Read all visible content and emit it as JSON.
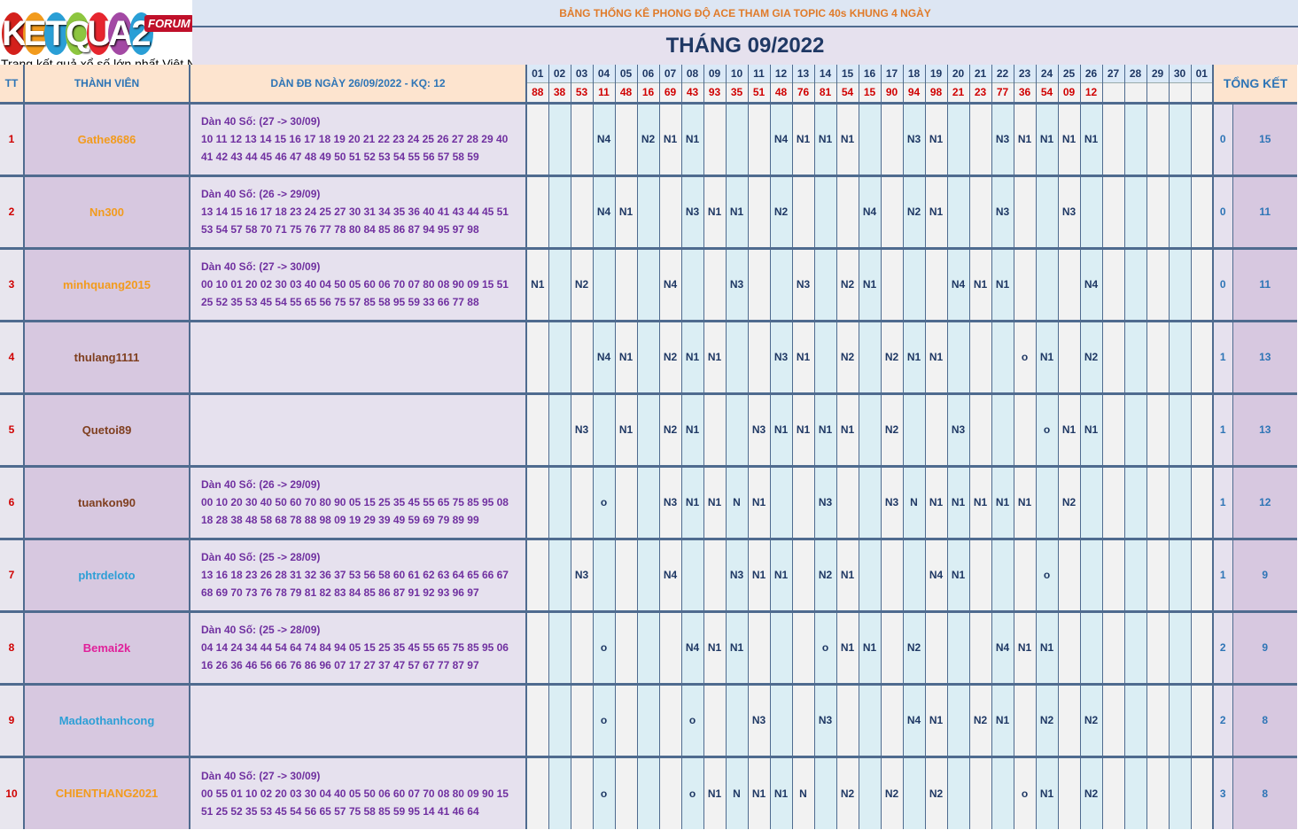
{
  "logo": {
    "brand": "KETQUA2",
    "brand_letters": [
      "K",
      "E",
      "T",
      "Q",
      "U",
      "A",
      "2"
    ],
    "brand_colors": [
      "#d4211c",
      "#f29b1d",
      "#2a9fd6",
      "#8dc63f",
      "#e6262f",
      "#a349a4",
      "#2a9fd6"
    ],
    "badge": "FORUM",
    "tagline": "Trang kết quả xổ số lớn nhất Việt Nam"
  },
  "title": "BẢNG THỐNG KÊ PHONG ĐỘ ACE THAM GIA TOPIC 40s KHUNG 4 NGÀY",
  "month": "THÁNG 09/2022",
  "headers": {
    "tt": "TT",
    "member": "THÀNH VIÊN",
    "dan": "DÀN ĐB NGÀY 26/09/2022 - KQ: 12",
    "total": "TỔNG KẾT"
  },
  "days": [
    "01",
    "02",
    "03",
    "04",
    "05",
    "06",
    "07",
    "08",
    "09",
    "10",
    "11",
    "12",
    "13",
    "14",
    "15",
    "16",
    "17",
    "18",
    "19",
    "20",
    "21",
    "22",
    "23",
    "24",
    "25",
    "26",
    "27",
    "28",
    "29",
    "30",
    "01"
  ],
  "results": [
    "88",
    "38",
    "53",
    "11",
    "48",
    "16",
    "69",
    "43",
    "93",
    "35",
    "51",
    "48",
    "76",
    "81",
    "54",
    "15",
    "90",
    "94",
    "98",
    "21",
    "23",
    "77",
    "36",
    "54",
    "09",
    "12",
    "",
    "",
    "",
    "",
    ""
  ],
  "rows": [
    {
      "tt": "1",
      "name": "Gathe8686",
      "color": "#f29b1d",
      "dan_title": "Dàn 40 Số: (27 -> 30/09)",
      "dan_line1": "10 11 12 13 14 15 16 17 18 19 20 21 22 23 24 25 26 27 28 29 40",
      "dan_line2": "41 42 43 44 45 46 47 48 49 50 51 52 53 54 55 56 57 58 59",
      "cells": [
        "",
        "",
        "",
        "N4",
        "",
        "N2",
        "N1",
        "N1",
        "",
        "",
        "",
        "N4",
        "N1",
        "N1",
        "N1",
        "",
        "",
        "N3",
        "N1",
        "",
        "",
        "N3",
        "N1",
        "N1",
        "N1",
        "N1",
        "",
        "",
        "",
        "",
        ""
      ],
      "t1": "0",
      "t2": "15"
    },
    {
      "tt": "2",
      "name": "Nn300",
      "color": "#f29b1d",
      "dan_title": "Dàn 40 Số: (26 -> 29/09)",
      "dan_line1": "13 14 15 16 17 18 23 24 25 27 30 31 34 35 36 40 41 43 44 45 51",
      "dan_line2": "53 54 57 58 70 71 75 76 77 78 80 84 85 86 87 94 95 97 98",
      "cells": [
        "",
        "",
        "",
        "N4",
        "N1",
        "",
        "",
        "N3",
        "N1",
        "N1",
        "",
        "N2",
        "",
        "",
        "",
        "N4",
        "",
        "N2",
        "N1",
        "",
        "",
        "N3",
        "",
        "",
        "N3",
        "",
        "",
        "",
        "",
        "",
        ""
      ],
      "t1": "0",
      "t2": "11"
    },
    {
      "tt": "3",
      "name": "minhquang2015",
      "color": "#f29b1d",
      "dan_title": "Dàn 40 Số: (27 -> 30/09)",
      "dan_line1": "00 10 01 20 02 30 03 40 04 50 05 60 06 70 07 80 08 90 09 15 51",
      "dan_line2": "25 52 35 53 45 54 55 65 56 75 57 85 58 95 59 33 66 77 88",
      "cells": [
        "N1",
        "",
        "N2",
        "",
        "",
        "",
        "N4",
        "",
        "",
        "N3",
        "",
        "",
        "N3",
        "",
        "N2",
        "N1",
        "",
        "",
        "",
        "N4",
        "N1",
        "N1",
        "",
        "",
        "",
        "N4",
        "",
        "",
        "",
        "",
        ""
      ],
      "t1": "0",
      "t2": "11"
    },
    {
      "tt": "4",
      "name": "thulang1111",
      "color": "#7f3f1f",
      "dan_title": "",
      "dan_line1": "",
      "dan_line2": "",
      "cells": [
        "",
        "",
        "",
        "N4",
        "N1",
        "",
        "N2",
        "N1",
        "N1",
        "",
        "",
        "N3",
        "N1",
        "",
        "N2",
        "",
        "N2",
        "N1",
        "N1",
        "",
        "",
        "",
        "o",
        "N1",
        "",
        "N2",
        "",
        "",
        "",
        "",
        ""
      ],
      "t1": "1",
      "t2": "13"
    },
    {
      "tt": "5",
      "name": "Quetoi89",
      "color": "#7f3f1f",
      "dan_title": "",
      "dan_line1": "",
      "dan_line2": "",
      "cells": [
        "",
        "",
        "N3",
        "",
        "N1",
        "",
        "N2",
        "N1",
        "",
        "",
        "N3",
        "N1",
        "N1",
        "N1",
        "N1",
        "",
        "N2",
        "",
        "",
        "N3",
        "",
        "",
        "",
        "o",
        "N1",
        "N1",
        "",
        "",
        "",
        "",
        ""
      ],
      "t1": "1",
      "t2": "13"
    },
    {
      "tt": "6",
      "name": "tuankon90",
      "color": "#7f3f1f",
      "dan_title": "Dàn 40 Số: (26 -> 29/09)",
      "dan_line1": "00 10 20 30 40 50 60 70 80 90 05 15 25 35 45 55 65 75 85 95 08",
      "dan_line2": "18 28 38 48 58 68 78 88 98 09 19 29 39 49 59 69 79 89 99",
      "cells": [
        "",
        "",
        "",
        "o",
        "",
        "",
        "N3",
        "N1",
        "N1",
        "N",
        "N1",
        "",
        "",
        "N3",
        "",
        "",
        "N3",
        "N",
        "N1",
        "N1",
        "N1",
        "N1",
        "N1",
        "",
        "N2",
        "",
        "",
        "",
        "",
        "",
        ""
      ],
      "t1": "1",
      "t2": "12"
    },
    {
      "tt": "7",
      "name": "phtrdeloto",
      "color": "#2e9fd6",
      "dan_title": "Dàn 40 Số: (25 -> 28/09)",
      "dan_line1": "13 16 18 23 26 28 31 32 36 37 53 56 58 60 61 62 63 64 65 66 67",
      "dan_line2": "68 69 70 73 76 78 79 81 82 83 84 85 86 87 91 92 93 96 97",
      "cells": [
        "",
        "",
        "N3",
        "",
        "",
        "",
        "N4",
        "",
        "",
        "N3",
        "N1",
        "N1",
        "",
        "N2",
        "N1",
        "",
        "",
        "",
        "N4",
        "N1",
        "",
        "",
        "",
        "o",
        "",
        "",
        "",
        "",
        "",
        "",
        ""
      ],
      "t1": "1",
      "t2": "9"
    },
    {
      "tt": "8",
      "name": "Bemai2k",
      "color": "#e0209a",
      "dan_title": "Dàn 40 Số: (25 -> 28/09)",
      "dan_line1": "04 14 24 34 44 54 64 74 84 94 05 15 25 35 45 55 65 75 85 95 06",
      "dan_line2": "16 26 36 46 56 66 76 86 96 07 17 27 37 47 57 67 77 87 97",
      "cells": [
        "",
        "",
        "",
        "o",
        "",
        "",
        "",
        "N4",
        "N1",
        "N1",
        "",
        "",
        "",
        "o",
        "N1",
        "N1",
        "",
        "N2",
        "",
        "",
        "",
        "N4",
        "N1",
        "N1",
        "",
        "",
        "",
        "",
        "",
        "",
        ""
      ],
      "t1": "2",
      "t2": "9"
    },
    {
      "tt": "9",
      "name": "Madaothanhcong",
      "color": "#2e9fd6",
      "dan_title": "",
      "dan_line1": "",
      "dan_line2": "",
      "cells": [
        "",
        "",
        "",
        "o",
        "",
        "",
        "",
        "o",
        "",
        "",
        "N3",
        "",
        "",
        "N3",
        "",
        "",
        "",
        "N4",
        "N1",
        "",
        "N2",
        "N1",
        "",
        "N2",
        "",
        "N2",
        "",
        "",
        "",
        "",
        ""
      ],
      "t1": "2",
      "t2": "8"
    },
    {
      "tt": "10",
      "name": "CHIENTHANG2021",
      "color": "#f29b1d",
      "dan_title": "Dàn 40 Số: (27 -> 30/09)",
      "dan_line1": "00 55 01 10 02 20 03 30 04 40 05 50 06 60 07 70 08 80 09 90 15",
      "dan_line2": "51 25 52 35 53 45 54 56 65 57 75 58 85 59 95 14 41 46 64",
      "cells": [
        "",
        "",
        "",
        "o",
        "",
        "",
        "",
        "o",
        "N1",
        "N",
        "N1",
        "N1",
        "N",
        "",
        "N2",
        "",
        "N2",
        "",
        "N2",
        "",
        "",
        "",
        "o",
        "N1",
        "",
        "N2",
        "",
        "",
        "",
        "",
        ""
      ],
      "t1": "3",
      "t2": "8"
    }
  ]
}
